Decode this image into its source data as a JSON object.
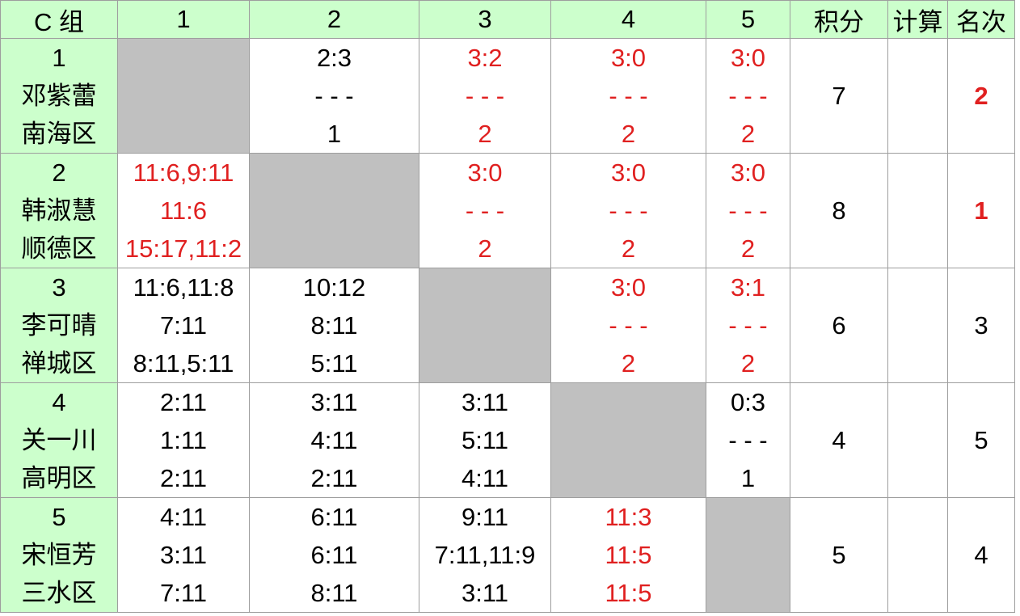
{
  "header": [
    "C 组",
    "1",
    "2",
    "3",
    "4",
    "5",
    "积分",
    "计算",
    "名次"
  ],
  "rows": [
    {
      "number": "1",
      "name": "邓紫蕾",
      "district": "南海区",
      "cells": [
        null,
        {
          "lines": [
            "2:3",
            "- - -",
            "1"
          ],
          "color": "#000000"
        },
        {
          "lines": [
            "3:2",
            "- - -",
            "2"
          ],
          "color": "#e02020"
        },
        {
          "lines": [
            "3:0",
            "- - -",
            "2"
          ],
          "color": "#e02020"
        },
        {
          "lines": [
            "3:0",
            "- - -",
            "2"
          ],
          "color": "#e02020"
        }
      ],
      "points": "7",
      "rank": {
        "text": "2",
        "color": "#e02020",
        "bold": true
      }
    },
    {
      "number": "2",
      "name": "韩淑慧",
      "district": "顺德区",
      "cells": [
        {
          "lines": [
            "11:6,9:11",
            "11:6",
            "15:17,11:2"
          ],
          "color": "#e02020"
        },
        null,
        {
          "lines": [
            "3:0",
            "- - -",
            "2"
          ],
          "color": "#e02020"
        },
        {
          "lines": [
            "3:0",
            "- - -",
            "2"
          ],
          "color": "#e02020"
        },
        {
          "lines": [
            "3:0",
            "- - -",
            "2"
          ],
          "color": "#e02020"
        }
      ],
      "points": "8",
      "rank": {
        "text": "1",
        "color": "#e02020",
        "bold": true
      }
    },
    {
      "number": "3",
      "name": "李可晴",
      "district": "禅城区",
      "cells": [
        {
          "lines": [
            "11:6,11:8",
            "7:11",
            "8:11,5:11"
          ],
          "color": "#000000"
        },
        {
          "lines": [
            "10:12",
            "8:11",
            "5:11"
          ],
          "color": "#000000"
        },
        null,
        {
          "lines": [
            "3:0",
            "- - -",
            "2"
          ],
          "color": "#e02020"
        },
        {
          "lines": [
            "3:1",
            "- - -",
            "2"
          ],
          "color": "#e02020"
        }
      ],
      "points": "6",
      "rank": {
        "text": "3",
        "color": "#000000",
        "bold": false
      }
    },
    {
      "number": "4",
      "name": "关一川",
      "district": "高明区",
      "cells": [
        {
          "lines": [
            "2:11",
            "1:11",
            "2:11"
          ],
          "color": "#000000"
        },
        {
          "lines": [
            "3:11",
            "4:11",
            "2:11"
          ],
          "color": "#000000"
        },
        {
          "lines": [
            "3:11",
            "5:11",
            "4:11"
          ],
          "color": "#000000"
        },
        null,
        {
          "lines": [
            "0:3",
            "- - -",
            "1"
          ],
          "color": "#000000"
        }
      ],
      "points": "4",
      "rank": {
        "text": "5",
        "color": "#000000",
        "bold": false
      }
    },
    {
      "number": "5",
      "name": "宋恒芳",
      "district": "三水区",
      "cells": [
        {
          "lines": [
            "4:11",
            "3:11",
            "7:11"
          ],
          "color": "#000000"
        },
        {
          "lines": [
            "6:11",
            "6:11",
            "8:11"
          ],
          "color": "#000000"
        },
        {
          "lines": [
            "9:11",
            "7:11,11:9",
            "3:11"
          ],
          "color": "#000000"
        },
        {
          "lines": [
            "11:3",
            "11:5",
            "11:5"
          ],
          "color": "#e02020"
        },
        null
      ],
      "points": "5",
      "rank": {
        "text": "4",
        "color": "#000000",
        "bold": false
      }
    }
  ]
}
